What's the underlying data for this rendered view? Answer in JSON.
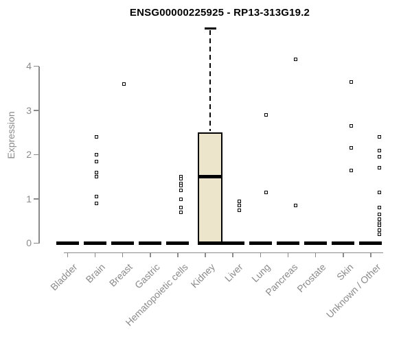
{
  "chart_data": {
    "type": "boxplot",
    "title": "ENSG00000225925 - RP13-313G19.2",
    "ylabel": "Expression",
    "xlabel": "",
    "yticks": [
      0,
      1,
      2,
      3,
      4
    ],
    "ylim": [
      0,
      4.9
    ],
    "grid": false,
    "legend": "none",
    "xticklabel_rotation": 45,
    "colors": {
      "box_fill": "#ECE5CC",
      "box_line": "#000000",
      "point": "#000000",
      "axis": "#8a8a8a",
      "title": "#000000"
    },
    "categories": [
      "Bladder",
      "Brain",
      "Breast",
      "Gastric",
      "Hematopoietic cells",
      "Kidney",
      "Liver",
      "Lung",
      "Pancreas",
      "Prostate",
      "Skin",
      "Unknown / Other"
    ],
    "series": [
      {
        "category": "Bladder",
        "q1": 0,
        "median": 0,
        "q3": 0,
        "points": [],
        "point_dx": 0
      },
      {
        "category": "Brain",
        "q1": 0,
        "median": 0,
        "q3": 0,
        "points": [
          2.4,
          2.0,
          1.85,
          1.6,
          1.5,
          1.05,
          0.9
        ],
        "point_dx": 2
      },
      {
        "category": "Breast",
        "q1": 0,
        "median": 0,
        "q3": 0,
        "points": [
          3.6
        ],
        "point_dx": 2
      },
      {
        "category": "Gastric",
        "q1": 0,
        "median": 0,
        "q3": 0,
        "points": [],
        "point_dx": 0
      },
      {
        "category": "Hematopoietic cells",
        "q1": 0,
        "median": 0,
        "q3": 0,
        "points": [
          1.5,
          1.45,
          1.35,
          1.3,
          1.2,
          1.0,
          0.8,
          0.7
        ],
        "point_dx": 5
      },
      {
        "category": "Kidney",
        "q1": 0,
        "median": 1.5,
        "q3": 2.5,
        "whisker_high": 4.85,
        "points": [],
        "box_dx": 7,
        "point_dx": 0
      },
      {
        "category": "Liver",
        "q1": 0,
        "median": 0,
        "q3": 0,
        "points": [
          0.95,
          0.85,
          0.75
        ],
        "point_dx": 9
      },
      {
        "category": "Lung",
        "q1": 0,
        "median": 0,
        "q3": 0,
        "points": [
          2.9,
          1.15
        ],
        "point_dx": 8
      },
      {
        "category": "Pancreas",
        "q1": 0,
        "median": 0,
        "q3": 0,
        "points": [
          4.15,
          0.85
        ],
        "point_dx": 11
      },
      {
        "category": "Prostate",
        "q1": 0,
        "median": 0,
        "q3": 0,
        "points": [],
        "point_dx": 0
      },
      {
        "category": "Skin",
        "q1": 0,
        "median": 0,
        "q3": 0,
        "points": [
          3.65,
          2.65,
          2.15,
          1.65
        ],
        "point_dx": 12
      },
      {
        "category": "Unknown / Other",
        "q1": 0,
        "median": 0,
        "q3": 0,
        "points": [
          2.4,
          2.1,
          1.95,
          1.7,
          1.15,
          0.8,
          0.65,
          0.55,
          0.45,
          0.4,
          0.3,
          0.2
        ],
        "point_dx": 13
      }
    ]
  }
}
